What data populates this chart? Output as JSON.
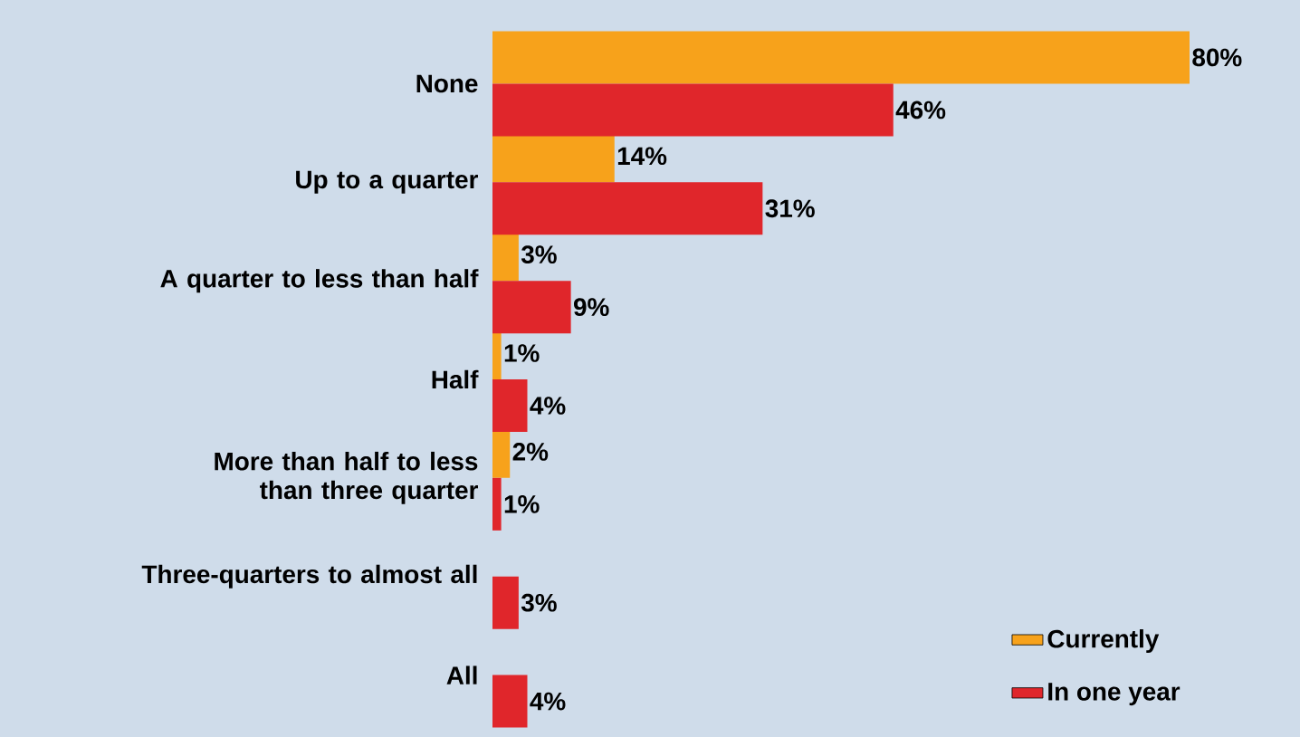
{
  "chart_data": {
    "type": "bar",
    "orientation": "horizontal",
    "categories": [
      "None",
      "Up to a quarter",
      "A quarter to less than half",
      "Half",
      "More than half to less than three quarter",
      "Three-quarters to almost all",
      "All"
    ],
    "series": [
      {
        "name": "Currently",
        "color": "#f7a21b",
        "values": [
          80,
          14,
          3,
          1,
          2,
          null,
          null
        ],
        "value_labels": [
          "80%",
          "14%",
          "3%",
          "1%",
          "2%",
          null,
          null
        ]
      },
      {
        "name": "In one year",
        "color": "#e0262b",
        "values": [
          46,
          31,
          9,
          4,
          1,
          3,
          4
        ],
        "value_labels": [
          "46%",
          "31%",
          "9%",
          "4%",
          "1%",
          "3%",
          "4%"
        ]
      }
    ],
    "legend": "bottom right"
  }
}
